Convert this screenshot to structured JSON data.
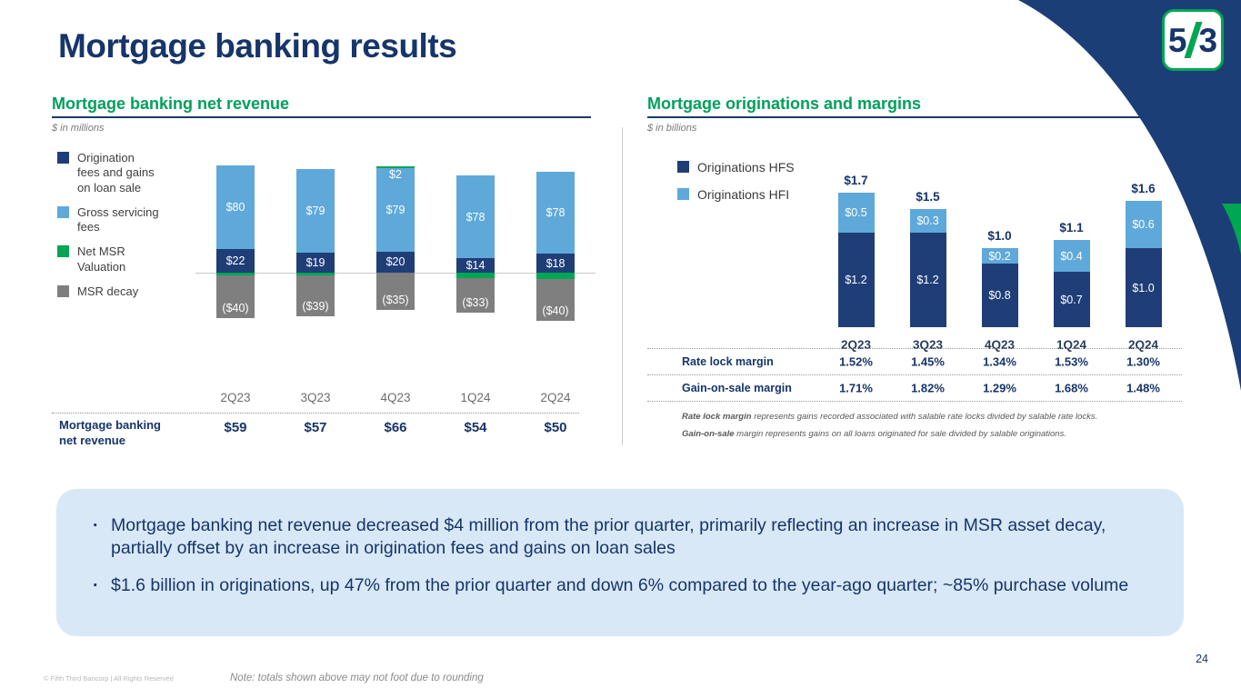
{
  "slide": {
    "title": "Mortgage banking results",
    "page_number": "24",
    "footer_copyright": "© Fifth Third Bancorp | All Rights Reserved",
    "footer_note": "Note: totals shown above may not foot due to rounding"
  },
  "logo": {
    "left_digit": "5",
    "right_digit": "3"
  },
  "colors": {
    "navy": "#16356b",
    "bar_navy": "#1f3e78",
    "light_blue": "#5fa8da",
    "green": "#00a651",
    "heading_green": "#00a05c",
    "gray": "#7f7f7f",
    "callout_bg": "#d9e8f6",
    "corner_navy": "#1c3e77"
  },
  "left_panel": {
    "heading": "Mortgage banking net revenue",
    "units": "$ in millions"
  },
  "right_panel": {
    "heading": "Mortgage originations and margins",
    "units": "$ in billions",
    "footnotes": [
      {
        "lead": "Rate lock margin",
        "rest": " represents gains recorded associated with salable rate locks divided by salable rate locks."
      },
      {
        "lead": "Gain-on-sale",
        "rest": " margin represents gains on all loans originated for sale divided by salable originations."
      }
    ]
  },
  "callout": {
    "bullet_char": "·",
    "bullets": [
      "Mortgage banking net revenue decreased $4 million from the prior quarter, primarily reflecting an increase in MSR asset decay, partially offset by an increase in origination fees and gains on loan sales",
      "$1.6 billion in originations, up 47% from the prior quarter and down 6% compared to the year-ago quarter; ~85% purchase volume"
    ]
  },
  "chart_data": [
    {
      "type": "bar",
      "stacked": true,
      "title": "Mortgage banking net revenue",
      "units": "$ in millions",
      "categories": [
        "2Q23",
        "3Q23",
        "4Q23",
        "1Q24",
        "2Q24"
      ],
      "series": [
        {
          "name": "Origination fees and gains on loan sale",
          "color": "#1f3e78",
          "values": [
            22,
            19,
            20,
            14,
            18
          ],
          "labels": [
            "$22",
            "$19",
            "$20",
            "$14",
            "$18"
          ]
        },
        {
          "name": "Gross servicing fees",
          "color": "#5fa8da",
          "values": [
            80,
            79,
            79,
            78,
            78
          ],
          "labels": [
            "$80",
            "$79",
            "$79",
            "$78",
            "$78"
          ]
        },
        {
          "name": "Net MSR Valuation",
          "color": "#00a651",
          "values": [
            -3,
            -2,
            2,
            -5,
            -6
          ],
          "labels": [
            "($3)",
            "($2)",
            "$2",
            "($5)",
            "($6)"
          ]
        },
        {
          "name": "MSR decay",
          "color": "#7f7f7f",
          "values": [
            -40,
            -39,
            -35,
            -33,
            -40
          ],
          "labels": [
            "($40)",
            "($39)",
            "($35)",
            "($33)",
            "($40)"
          ]
        }
      ],
      "totals_row": {
        "label": "Mortgage banking net revenue",
        "values": [
          "$59",
          "$57",
          "$66",
          "$54",
          "$50"
        ]
      },
      "legend_position": "left",
      "grid": false
    },
    {
      "type": "bar",
      "stacked": true,
      "title": "Mortgage originations and margins",
      "units": "$ in billions",
      "categories": [
        "2Q23",
        "3Q23",
        "4Q23",
        "1Q24",
        "2Q24"
      ],
      "series": [
        {
          "name": "Originations HFS",
          "color": "#1f3e78",
          "values": [
            1.2,
            1.2,
            0.8,
            0.7,
            1.0
          ],
          "labels": [
            "$1.2",
            "$1.2",
            "$0.8",
            "$0.7",
            "$1.0"
          ]
        },
        {
          "name": "Originations HFI",
          "color": "#5fa8da",
          "values": [
            0.5,
            0.3,
            0.2,
            0.4,
            0.6
          ],
          "labels": [
            "$0.5",
            "$0.3",
            "$0.2",
            "$0.4",
            "$0.6"
          ]
        }
      ],
      "totals": [
        "$1.7",
        "$1.5",
        "$1.0",
        "$1.1",
        "$1.6"
      ],
      "table_rows": [
        {
          "label": "Rate lock margin",
          "values": [
            "1.52%",
            "1.45%",
            "1.34%",
            "1.53%",
            "1.30%"
          ]
        },
        {
          "label": "Gain-on-sale margin",
          "values": [
            "1.71%",
            "1.82%",
            "1.29%",
            "1.68%",
            "1.48%"
          ]
        }
      ],
      "legend_position": "left",
      "grid": false
    }
  ]
}
